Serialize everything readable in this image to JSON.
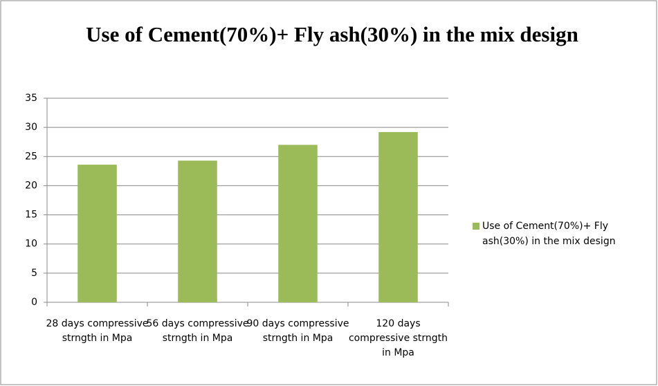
{
  "chart_data": {
    "type": "bar",
    "title": "Use of Cement(70%)+ Fly ash(30%) in the mix design",
    "categories": [
      "28 days compressive strngth in Mpa",
      "56 days compressive strngth in Mpa",
      "90 days compressive strngth in Mpa",
      "120 days compressive strngth in Mpa"
    ],
    "series": [
      {
        "name": "Use of Cement(70%)+ Fly ash(30%) in the mix design",
        "color": "#9bbb59",
        "values": [
          23.6,
          24.3,
          27.0,
          29.2
        ]
      }
    ],
    "ylim": [
      0,
      35
    ],
    "yticks": [
      0,
      5,
      10,
      15,
      20,
      25,
      30,
      35
    ],
    "grid": true,
    "legend": "right"
  }
}
